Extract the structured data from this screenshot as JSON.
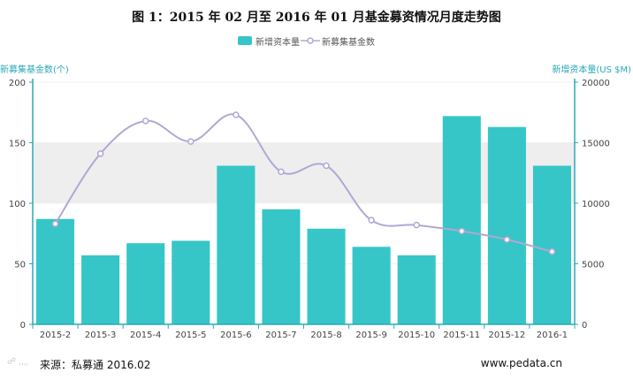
{
  "title": "图 1：2015 年 02 月至 2016 年 01 月基金募资情况月度走势图",
  "legend": {
    "bar_label": "新增资本量",
    "line_label": "新募集基金数"
  },
  "axes": {
    "left_title": "新募集基金数(个)",
    "right_title": "新增资本量(US $M)"
  },
  "footer": {
    "source": "来源：私募通  2016.02",
    "site": "www.pedata.cn"
  },
  "colors": {
    "bar": "#36c6c7",
    "line": "#b3a7d4",
    "axis": "#2aa8b8"
  },
  "chart_data": {
    "type": "bar",
    "categories": [
      "2015-2",
      "2015-3",
      "2015-4",
      "2015-5",
      "2015-6",
      "2015-7",
      "2015-8",
      "2015-9",
      "2015-10",
      "2015-11",
      "2015-12",
      "2016-1"
    ],
    "series": [
      {
        "name": "新增资本量",
        "type": "bar",
        "axis": "right",
        "values": [
          8700,
          5700,
          6700,
          6900,
          13100,
          9500,
          7900,
          6400,
          5700,
          17200,
          16300,
          13100
        ]
      },
      {
        "name": "新募集基金数",
        "type": "line",
        "axis": "left",
        "values": [
          83,
          141,
          168,
          151,
          173,
          126,
          131,
          86,
          82,
          77,
          70,
          60
        ]
      }
    ],
    "y_left": {
      "ticks": [
        0,
        50,
        100,
        150,
        200
      ],
      "lim": [
        0,
        200
      ]
    },
    "y_right": {
      "ticks": [
        0,
        5000,
        10000,
        15000,
        20000
      ],
      "lim": [
        0,
        20000
      ]
    },
    "band": [
      100,
      150
    ],
    "grid": true,
    "legend_position": "top-center"
  }
}
